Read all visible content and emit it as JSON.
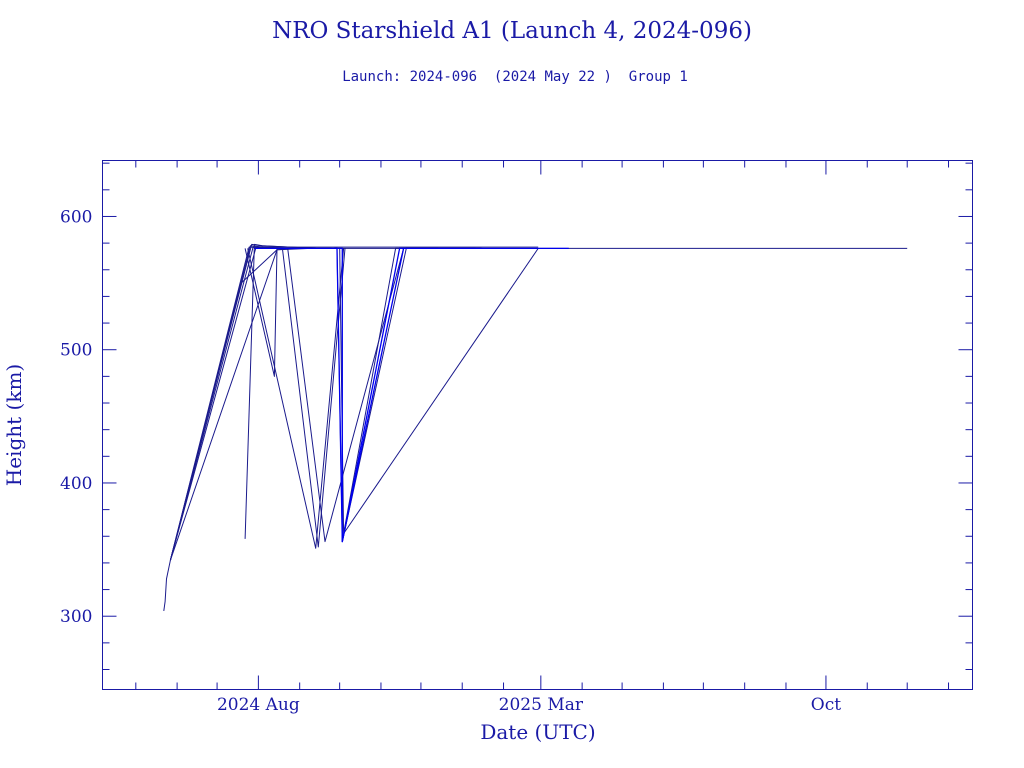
{
  "chart_data": {
    "type": "line",
    "title": "NRO Starshield A1 (Launch 4, 2024-096)",
    "subtitle": "Launch: 2024-096  (2024 May 22 )  Group 1",
    "xlabel": "Date (UTC)",
    "ylabel": "Height (km)",
    "x_ticks": [
      "2024 Aug",
      "2025 Mar",
      "Oct"
    ],
    "y_ticks": [
      300,
      400,
      500,
      600
    ],
    "xlim": [
      "2024-04-06",
      "2026-01-19"
    ],
    "ylim": [
      245,
      642
    ],
    "grid": false,
    "legend": "none",
    "colors": {
      "axis": "#1a1aa6",
      "line_dark": "#1a1a8c",
      "line_bright": "#0000ee"
    },
    "series": [
      {
        "points": [
          [
            "2024-05-22",
            304
          ],
          [
            "2024-05-23",
            311
          ],
          [
            "2024-05-24",
            328
          ],
          [
            "2024-05-27",
            342
          ],
          [
            "2024-07-26",
            578
          ],
          [
            "2024-08-05",
            577
          ],
          [
            "2025-02-27",
            577
          ]
        ]
      },
      {
        "points": [
          [
            "2024-05-27",
            342
          ],
          [
            "2024-07-25",
            577
          ],
          [
            "2024-08-20",
            576
          ],
          [
            "2024-09-03",
            576
          ]
        ]
      },
      {
        "points": [
          [
            "2024-05-27",
            342
          ],
          [
            "2024-07-27",
            579
          ],
          [
            "2024-08-03",
            578
          ],
          [
            "2024-09-13",
            576
          ]
        ]
      },
      {
        "points": [
          [
            "2024-05-27",
            342
          ],
          [
            "2024-07-28",
            577
          ],
          [
            "2024-08-07",
            576
          ],
          [
            "2025-01-11",
            576
          ]
        ]
      },
      {
        "points": [
          [
            "2024-05-27",
            342
          ],
          [
            "2024-07-30",
            576
          ],
          [
            "2024-08-04",
            576
          ],
          [
            "2024-09-10",
            576
          ]
        ]
      },
      {
        "points": [
          [
            "2024-05-27",
            342
          ],
          [
            "2024-07-19",
            550
          ],
          [
            "2024-08-15",
            575
          ],
          [
            "2024-09-09",
            576
          ]
        ]
      },
      {
        "points": [
          [
            "2024-05-27",
            342
          ],
          [
            "2024-08-15",
            575
          ],
          [
            "2024-09-01",
            576
          ]
        ]
      },
      {
        "points": [
          [
            "2024-07-22",
            358
          ],
          [
            "2024-07-29",
            579
          ],
          [
            "2024-08-04",
            578
          ],
          [
            "2024-09-13",
            576
          ]
        ]
      },
      {
        "points": [
          [
            "2024-07-22",
            576
          ],
          [
            "2024-08-13",
            480
          ],
          [
            "2024-08-15",
            576
          ],
          [
            "2024-09-25",
            576
          ]
        ]
      },
      {
        "points": [
          [
            "2024-07-24",
            576
          ],
          [
            "2024-09-13",
            351
          ],
          [
            "2024-10-04",
            576
          ]
        ]
      },
      {
        "points": [
          [
            "2024-08-19",
            576
          ],
          [
            "2024-09-15",
            352
          ],
          [
            "2024-10-05",
            576
          ]
        ]
      },
      {
        "points": [
          [
            "2024-08-23",
            576
          ],
          [
            "2024-09-20",
            356
          ],
          [
            "2024-11-18",
            576
          ],
          [
            "2025-01-15",
            576
          ]
        ]
      },
      {
        "points": [
          [
            "2024-09-29",
            576
          ],
          [
            "2024-10-03",
            356
          ],
          [
            "2024-11-20",
            576
          ],
          [
            "2025-01-16",
            576
          ]
        ]
      },
      {
        "points": [
          [
            "2024-10-01",
            576
          ],
          [
            "2024-10-04",
            362
          ],
          [
            "2024-11-12",
            576
          ],
          [
            "2024-12-14",
            576
          ]
        ]
      },
      {
        "points": [
          [
            "2024-10-04",
            362
          ],
          [
            "2025-02-27",
            576
          ],
          [
            "2025-12-01",
            576
          ]
        ]
      }
    ],
    "bright_series": [
      {
        "points": [
          [
            "2024-07-29",
            576
          ],
          [
            "2024-09-29",
            576
          ],
          [
            "2024-10-03",
            356
          ],
          [
            "2024-11-15",
            576
          ],
          [
            "2025-03-22",
            576
          ]
        ]
      },
      {
        "points": [
          [
            "2024-09-27",
            576
          ],
          [
            "2024-10-03",
            576
          ],
          [
            "2024-10-03",
            356
          ],
          [
            "2024-11-18",
            576
          ]
        ]
      }
    ]
  }
}
